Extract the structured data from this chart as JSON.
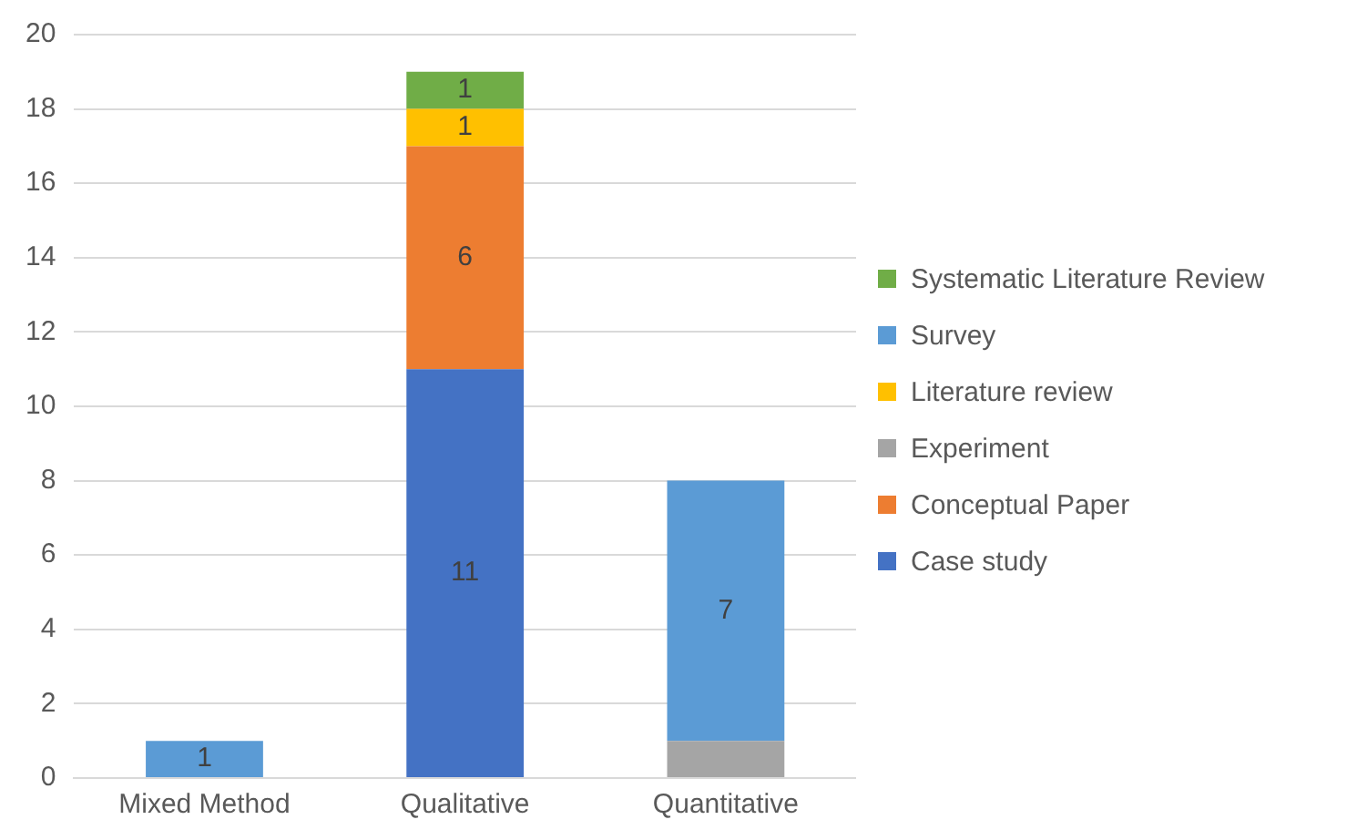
{
  "chart_data": {
    "type": "bar",
    "stacked": true,
    "categories": [
      "Mixed Method",
      "Qualitative",
      "Quantitative"
    ],
    "series": [
      {
        "name": "Case study",
        "color": "#4472c4",
        "values": [
          null,
          11,
          null
        ],
        "value_labels": [
          null,
          "11",
          null
        ]
      },
      {
        "name": "Conceptual Paper",
        "color": "#ed7d31",
        "values": [
          null,
          6,
          null
        ],
        "value_labels": [
          null,
          "6",
          null
        ]
      },
      {
        "name": "Experiment",
        "color": "#a5a5a5",
        "values": [
          null,
          null,
          1
        ]
      },
      {
        "name": "Literature review",
        "color": "#ffc000",
        "values": [
          null,
          1,
          null
        ],
        "value_labels": [
          null,
          "1",
          null
        ]
      },
      {
        "name": "Survey",
        "color": "#5b9bd5",
        "values": [
          1,
          null,
          7
        ],
        "value_labels": [
          "1",
          null,
          "7"
        ]
      },
      {
        "name": "Systematic Literature Review",
        "color": "#70ad47",
        "values": [
          null,
          1,
          null
        ],
        "value_labels": [
          null,
          "1",
          null
        ]
      }
    ],
    "ylim": [
      0,
      20
    ],
    "yticks": [
      0,
      2,
      4,
      6,
      8,
      10,
      12,
      14,
      16,
      18,
      20
    ],
    "grid": "y",
    "legend": "right"
  }
}
